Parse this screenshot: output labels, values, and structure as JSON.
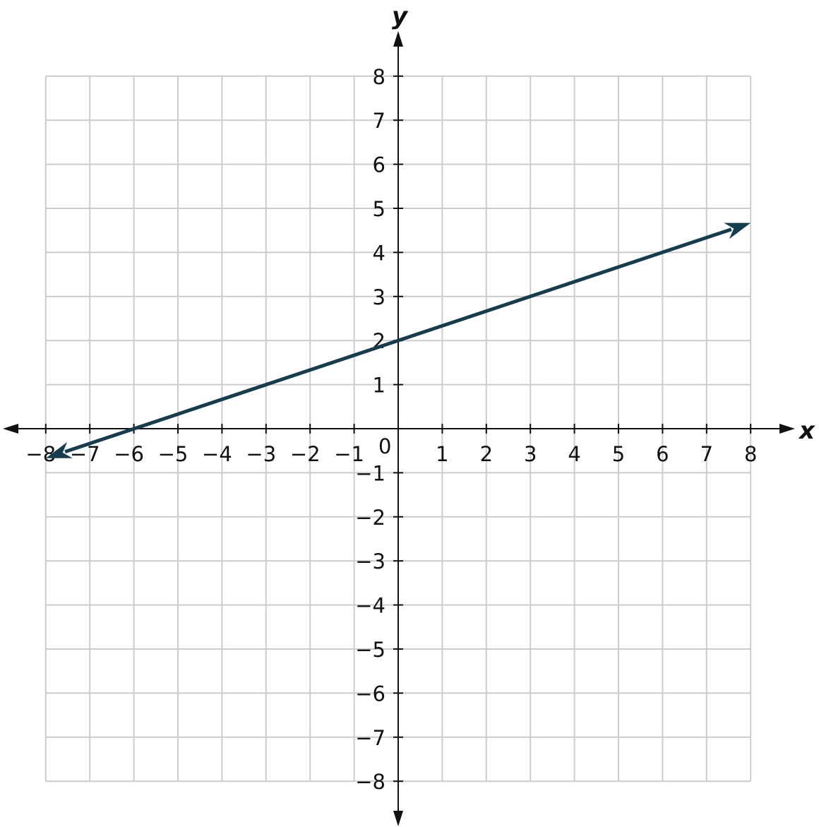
{
  "chart_data": {
    "type": "line",
    "title": "",
    "xlabel": "x",
    "ylabel": "y",
    "xlim": [
      -8,
      8
    ],
    "ylim": [
      -8,
      8
    ],
    "grid": true,
    "x_ticks": [
      -8,
      -7,
      -6,
      -5,
      -4,
      -3,
      -2,
      -1,
      1,
      2,
      3,
      4,
      5,
      6,
      7,
      8
    ],
    "y_ticks": [
      -8,
      -7,
      -6,
      -5,
      -4,
      -3,
      -2,
      -1,
      1,
      2,
      3,
      4,
      5,
      6,
      7,
      8
    ],
    "origin_label": "0",
    "series": [
      {
        "equation": "y = (1/3)x + 2",
        "points": [
          [
            -8,
            -0.67
          ],
          [
            -6,
            0
          ],
          [
            -3,
            1
          ],
          [
            0,
            2
          ],
          [
            3,
            3
          ],
          [
            6,
            4
          ],
          [
            8,
            4.67
          ]
        ],
        "arrows": "both",
        "color": "#163d4d"
      }
    ],
    "colors": {
      "grid": "#cccccc",
      "axis": "#111111",
      "line": "#163d4d"
    }
  }
}
